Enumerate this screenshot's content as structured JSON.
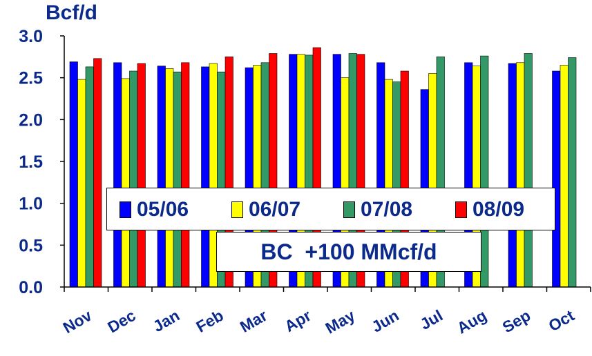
{
  "chart_data": {
    "type": "bar",
    "title": "",
    "ylabel": "Bcf/d",
    "xlabel": "",
    "ylim": [
      0,
      3.0
    ],
    "yticks": [
      "0.0",
      "0.5",
      "1.0",
      "1.5",
      "2.0",
      "2.5",
      "3.0"
    ],
    "categories": [
      "Nov",
      "Dec",
      "Jan",
      "Feb",
      "Mar",
      "Apr",
      "May",
      "Jun",
      "Jul",
      "Aug",
      "Sep",
      "Oct"
    ],
    "series": [
      {
        "name": "05/06",
        "color": "#0000ff",
        "values": [
          2.69,
          2.68,
          2.64,
          2.63,
          2.62,
          2.78,
          2.78,
          2.68,
          2.36,
          2.68,
          2.67,
          2.58
        ]
      },
      {
        "name": "06/07",
        "color": "#ffff00",
        "values": [
          2.48,
          2.49,
          2.61,
          2.67,
          2.65,
          2.78,
          2.5,
          2.48,
          2.55,
          2.64,
          2.68,
          2.65
        ]
      },
      {
        "name": "07/08",
        "color": "#339966",
        "values": [
          2.63,
          2.58,
          2.57,
          2.57,
          2.68,
          2.77,
          2.79,
          2.45,
          2.75,
          2.76,
          2.79,
          2.74
        ]
      },
      {
        "name": "08/09",
        "color": "#ff0000",
        "values": [
          2.73,
          2.67,
          2.68,
          2.75,
          2.79,
          2.86,
          2.78,
          2.58,
          null,
          null,
          null,
          null
        ]
      }
    ],
    "legend_position": "inside-lower-center",
    "annotation": "BC  +100 MMcf/d",
    "grid": false
  }
}
